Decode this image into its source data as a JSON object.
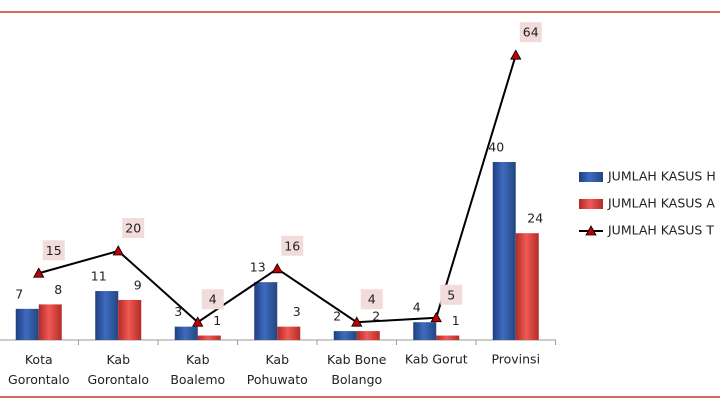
{
  "chart_data": {
    "type": "bar-line",
    "categories": [
      "Kota\nGorontalo",
      "Kab\nGorontalo",
      "Kab\nBoalemo",
      "Kab\nPohuwato",
      "Kab Bone\nBolango",
      "Kab Gorut",
      "Provinsi"
    ],
    "series": [
      {
        "name": "JUMLAH KASUS H",
        "color": "#2f56a3",
        "type": "bar",
        "values": [
          7,
          11,
          3,
          13,
          2,
          4,
          40
        ]
      },
      {
        "name": "JUMLAH KASUS A",
        "color": "#d8403b",
        "type": "bar",
        "values": [
          8,
          9,
          1,
          3,
          2,
          1,
          24
        ]
      },
      {
        "name": "JUMLAH KASUS T",
        "color": "#000000",
        "marker_color": "#c00000",
        "type": "line",
        "values": [
          15,
          20,
          4,
          16,
          4,
          5,
          64
        ]
      }
    ],
    "legend": "right"
  }
}
